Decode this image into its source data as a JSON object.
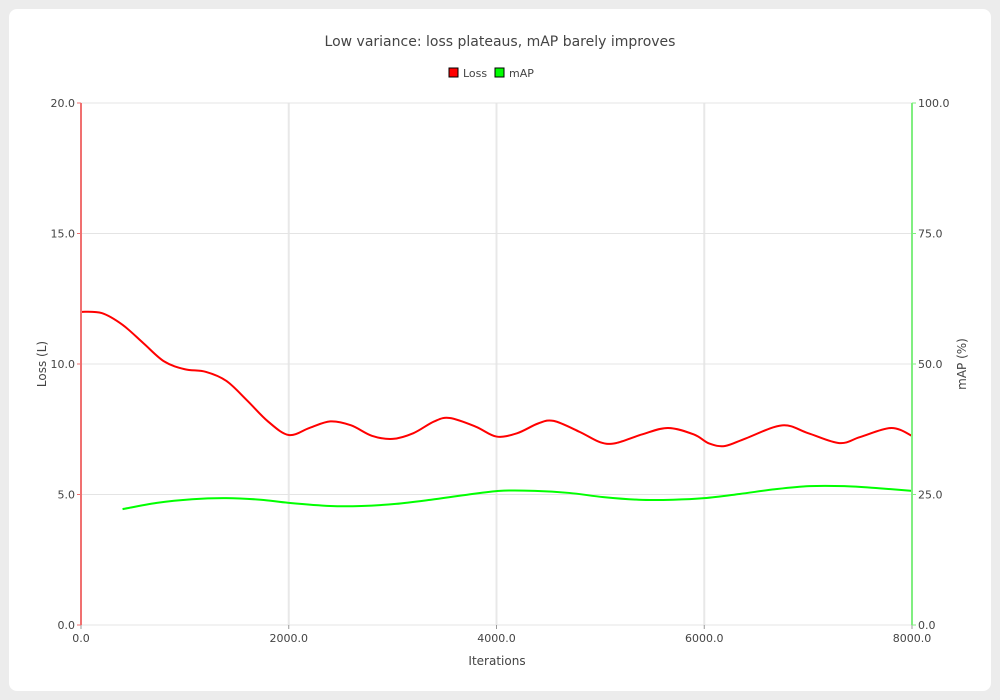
{
  "chart_data": {
    "type": "line",
    "title": "Low variance: loss plateaus, mAP barely improves",
    "xlabel": "Iterations",
    "ylabel": "Loss (L)",
    "y2label": "mAP (%)",
    "xlim": [
      0,
      8000
    ],
    "ylim": [
      0,
      20
    ],
    "y2lim": [
      0,
      100
    ],
    "xticks": [
      "0.0",
      "2000.0",
      "4000.0",
      "6000.0",
      "8000.0"
    ],
    "yticks": [
      "0.0",
      "5.0",
      "10.0",
      "15.0",
      "20.0"
    ],
    "y2ticks": [
      "0.0",
      "25.0",
      "50.0",
      "75.0",
      "100.0"
    ],
    "grid": true,
    "legend_position": "top-center",
    "series": [
      {
        "name": "Loss",
        "axis": "left",
        "color": "#ff0000",
        "x": [
          0,
          200,
          400,
          600,
          800,
          1000,
          1200,
          1400,
          1600,
          1800,
          2000,
          2200,
          2400,
          2600,
          2800,
          3000,
          3200,
          3400,
          3550,
          3800,
          4000,
          4200,
          4400,
          4550,
          4800,
          5000,
          5150,
          5400,
          5650,
          5900,
          6050,
          6200,
          6400,
          6750,
          7000,
          7300,
          7500,
          7800,
          8000
        ],
        "y": [
          12.0,
          11.95,
          11.5,
          10.8,
          10.1,
          9.8,
          9.7,
          9.35,
          8.6,
          7.8,
          7.28,
          7.55,
          7.8,
          7.65,
          7.25,
          7.13,
          7.35,
          7.8,
          7.93,
          7.6,
          7.22,
          7.35,
          7.72,
          7.82,
          7.4,
          7.0,
          6.97,
          7.3,
          7.55,
          7.3,
          6.95,
          6.86,
          7.15,
          7.65,
          7.35,
          6.97,
          7.2,
          7.55,
          7.25
        ]
      },
      {
        "name": "mAP",
        "axis": "right",
        "color": "#00ff00",
        "x": [
          400,
          730,
          1070,
          1400,
          1730,
          2000,
          2400,
          2700,
          3030,
          3370,
          3700,
          4030,
          4370,
          4700,
          5030,
          5370,
          5700,
          6000,
          6340,
          6680,
          7010,
          7350,
          7680,
          8000
        ],
        "y": [
          22.2,
          23.4,
          24.1,
          24.3,
          24.0,
          23.4,
          22.8,
          22.8,
          23.2,
          24.0,
          24.9,
          25.7,
          25.7,
          25.3,
          24.5,
          24.0,
          24.0,
          24.3,
          25.1,
          26.0,
          26.6,
          26.6,
          26.2,
          25.7
        ]
      }
    ]
  }
}
